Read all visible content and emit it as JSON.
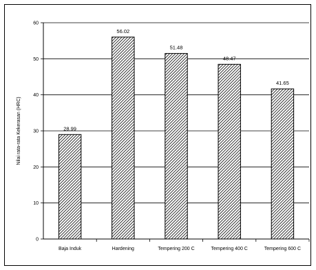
{
  "chart_data": {
    "type": "bar",
    "categories": [
      "Baja Induk",
      "Hardening",
      "Tempering 200 C",
      "Tempering 400 C",
      "Tempering 600 C"
    ],
    "values": [
      28.99,
      56.02,
      51.48,
      48.47,
      41.65
    ],
    "value_labels": [
      "28.99",
      "56.02",
      "51.48",
      "48.47",
      "41.65"
    ],
    "ylabel": "Nilai rata-rata Kekerasan (HRC)",
    "xlabel": "",
    "ylim": [
      0,
      60
    ],
    "yticks": [
      "0",
      "10",
      "20",
      "30",
      "40",
      "50",
      "60"
    ],
    "grid": true,
    "legend": "none",
    "bar_fill": "hatched",
    "colors": {
      "bar_hatch": "#000000",
      "bar_background": "#ffffff",
      "grid": "#000000",
      "axis": "#000000"
    }
  }
}
